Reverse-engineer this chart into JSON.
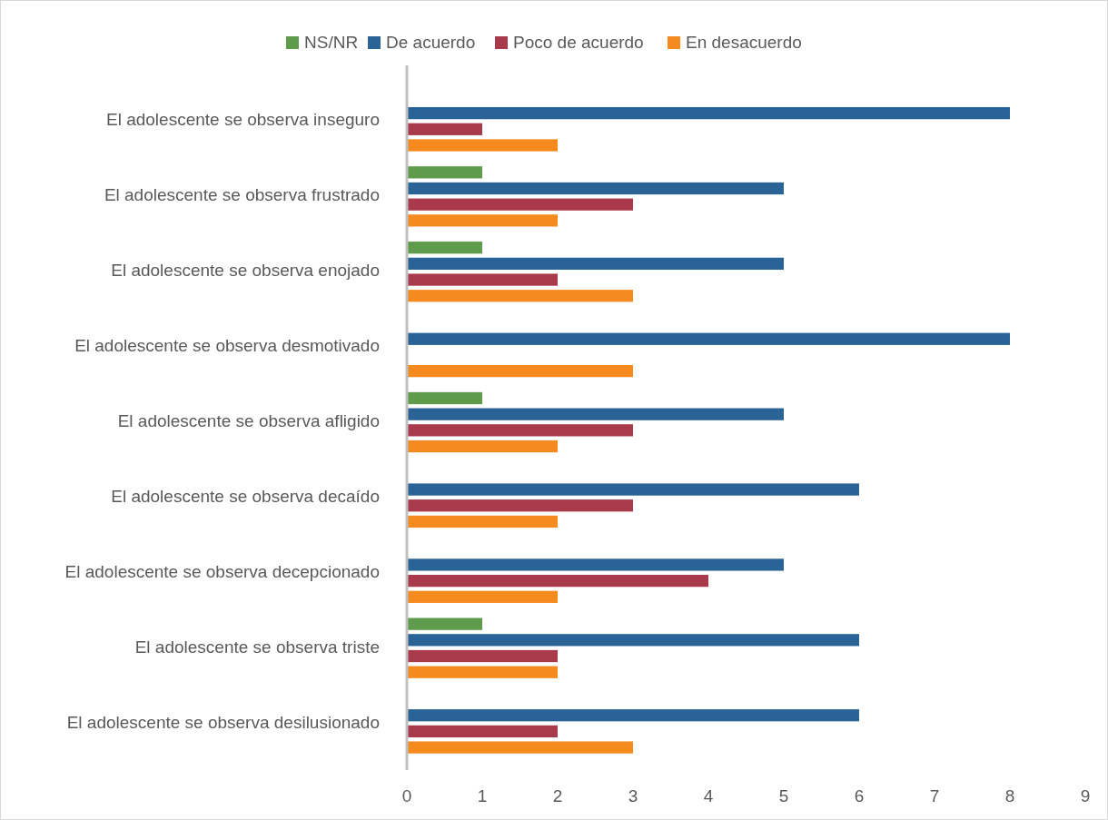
{
  "chart_data": {
    "type": "bar",
    "orientation": "horizontal",
    "categories": [
      "El adolescente se observa inseguro",
      "El adolescente se observa frustrado",
      "El adolescente se observa enojado",
      "El adolescente se observa desmotivado",
      "El adolescente se observa afligido",
      "El adolescente se observa decaído",
      "El adolescente se observa decepcionado",
      "El adolescente se observa triste",
      "El adolescente se observa desilusionado"
    ],
    "series": [
      {
        "name": "NS/NR",
        "color": "#5e9b4b",
        "values": [
          0,
          1,
          1,
          0,
          1,
          0,
          0,
          1,
          0
        ]
      },
      {
        "name": "De acuerdo",
        "color": "#2a6496",
        "values": [
          8,
          5,
          5,
          8,
          5,
          6,
          5,
          6,
          6
        ]
      },
      {
        "name": "Poco de acuerdo",
        "color": "#a83a4c",
        "values": [
          1,
          3,
          2,
          0,
          3,
          3,
          4,
          2,
          2
        ]
      },
      {
        "name": "En desacuerdo",
        "color": "#f58a1f",
        "values": [
          2,
          2,
          3,
          3,
          2,
          2,
          2,
          2,
          3
        ]
      }
    ],
    "xlim": [
      0,
      9
    ],
    "xticks": [
      0,
      1,
      2,
      3,
      4,
      5,
      6,
      7,
      8,
      9
    ],
    "grid": false,
    "legend": "top"
  }
}
